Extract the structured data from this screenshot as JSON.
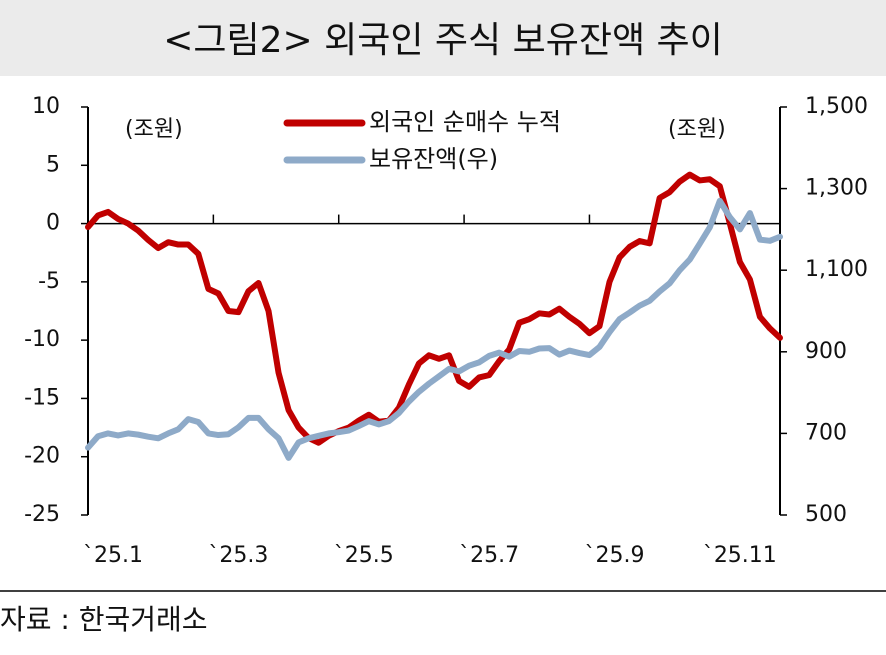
{
  "chart_data": {
    "type": "line",
    "title": "<그림2> 외국인 주식 보유잔액 추이",
    "source": "자료 : 한국거래소",
    "y_unit": "(조원)",
    "y2_unit": "(조원)",
    "x": [
      1.0,
      1.16,
      1.32,
      1.48,
      1.64,
      1.8,
      1.96,
      2.12,
      2.28,
      2.44,
      2.6,
      2.76,
      2.92,
      3.08,
      3.24,
      3.4,
      3.56,
      3.72,
      3.88,
      4.04,
      4.2,
      4.36,
      4.52,
      4.68,
      4.84,
      5.0,
      5.16,
      5.32,
      5.48,
      5.64,
      5.8,
      5.96,
      6.12,
      6.28,
      6.44,
      6.6,
      6.76,
      6.92,
      7.08,
      7.24,
      7.4,
      7.56,
      7.72,
      7.88,
      8.04,
      8.2,
      8.36,
      8.52,
      8.68,
      8.84,
      9.0,
      9.16,
      9.32,
      9.48,
      9.64,
      9.8,
      9.96,
      10.12,
      10.28,
      10.44,
      10.6,
      10.76,
      10.92,
      11.08,
      11.24,
      11.4,
      11.56,
      11.72,
      11.88,
      12.04
    ],
    "series": [
      {
        "name": "외국인 순매수 누적",
        "color": "#c00000",
        "axis": "y",
        "values": [
          -0.3,
          0.7,
          1.0,
          0.4,
          0.0,
          -0.6,
          -1.4,
          -2.1,
          -1.6,
          -1.8,
          -1.8,
          -2.6,
          -5.6,
          -6.0,
          -7.5,
          -7.6,
          -5.8,
          -5.1,
          -7.5,
          -12.8,
          -16.0,
          -17.5,
          -18.4,
          -18.8,
          -18.2,
          -17.8,
          -17.5,
          -16.9,
          -16.4,
          -17.0,
          -16.9,
          -15.8,
          -13.8,
          -12.0,
          -11.3,
          -11.6,
          -11.3,
          -13.5,
          -14.0,
          -13.2,
          -13.0,
          -11.8,
          -10.8,
          -8.5,
          -8.2,
          -7.7,
          -7.8,
          -7.3,
          -8.0,
          -8.6,
          -9.4,
          -8.8,
          -5.0,
          -2.9,
          -2.0,
          -1.5,
          -1.7,
          2.2,
          2.7,
          3.6,
          4.2,
          3.7,
          3.8,
          3.2,
          0.0,
          -3.3,
          -4.8,
          -8.0,
          -9.0,
          -9.8
        ]
      },
      {
        "name": "보유잔액(우)",
        "color": "#8eaac8",
        "axis": "y2",
        "values": [
          665,
          693,
          700,
          695,
          700,
          697,
          692,
          688,
          700,
          710,
          735,
          728,
          700,
          696,
          698,
          715,
          738,
          738,
          710,
          688,
          640,
          678,
          688,
          694,
          700,
          703,
          707,
          718,
          730,
          722,
          730,
          750,
          778,
          802,
          822,
          840,
          858,
          852,
          866,
          874,
          890,
          898,
          888,
          902,
          900,
          908,
          909,
          893,
          903,
          897,
          892,
          912,
          948,
          980,
          996,
          1013,
          1025,
          1048,
          1068,
          1100,
          1126,
          1165,
          1205,
          1270,
          1230,
          1200,
          1240,
          1175,
          1172,
          1182
        ]
      }
    ],
    "xlim": [
      1,
      12.04
    ],
    "xticks": [
      {
        "value": 1,
        "label": "`25.1"
      },
      {
        "value": 3,
        "label": "`25.3"
      },
      {
        "value": 5,
        "label": "`25.5"
      },
      {
        "value": 7,
        "label": "`25.7"
      },
      {
        "value": 9,
        "label": "`25.9"
      },
      {
        "value": 11,
        "label": "`25.11"
      }
    ],
    "ylim": [
      -25,
      10
    ],
    "yticks": [
      -25,
      -20,
      -15,
      -10,
      -5,
      0,
      5,
      10
    ],
    "y2lim": [
      500,
      1500
    ],
    "y2ticks": [
      {
        "value": 500,
        "label": "500"
      },
      {
        "value": 700,
        "label": "700"
      },
      {
        "value": 900,
        "label": "900"
      },
      {
        "value": 1100,
        "label": "1,100"
      },
      {
        "value": 1300,
        "label": "1,300"
      },
      {
        "value": 1500,
        "label": "1,500"
      }
    ],
    "legend": "top"
  }
}
